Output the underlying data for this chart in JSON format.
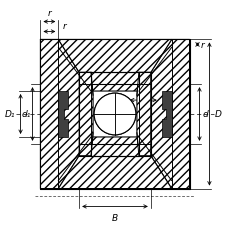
{
  "bg_color": "#ffffff",
  "line_color": "#000000",
  "fig_width": 2.3,
  "fig_height": 2.3,
  "dpi": 100,
  "labels": {
    "B": "B",
    "D": "D",
    "d": "d",
    "D1": "D₁",
    "d1": "d₁",
    "r1": "r",
    "r2": "r",
    "r3": "r",
    "r4": "r"
  },
  "font_size": 6.5,
  "italic_font": "italic"
}
